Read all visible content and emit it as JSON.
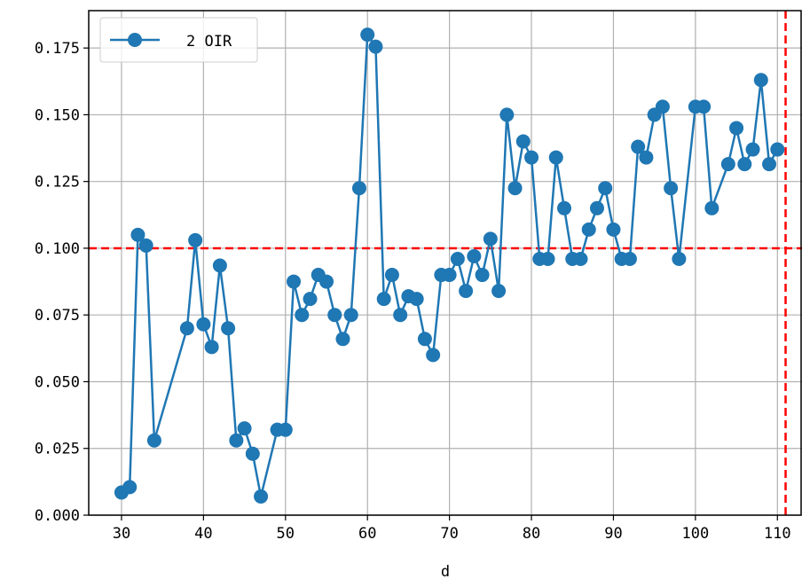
{
  "chart_data": {
    "type": "line",
    "title": "",
    "xlabel": "d",
    "ylabel": "",
    "xlim": [
      26,
      113
    ],
    "ylim": [
      0,
      0.189
    ],
    "xticks": [
      30,
      40,
      50,
      60,
      70,
      80,
      90,
      100,
      110
    ],
    "yticks": [
      0.0,
      0.025,
      0.05,
      0.075,
      0.1,
      0.125,
      0.15,
      0.175
    ],
    "xtick_labels": [
      "30",
      "40",
      "50",
      "60",
      "70",
      "80",
      "90",
      "100",
      "110"
    ],
    "ytick_labels": [
      "0.000",
      "0.025",
      "0.050",
      "0.075",
      "0.100",
      "0.125",
      "0.150",
      "0.175"
    ],
    "grid": true,
    "legend_position": "top-left",
    "series": [
      {
        "name": "2 OIR",
        "color": "#1f77b4",
        "marker": "circle",
        "x": [
          30,
          31,
          32,
          33,
          34,
          38,
          39,
          40,
          41,
          42,
          43,
          44,
          45,
          46,
          47,
          49,
          50,
          51,
          52,
          53,
          54,
          55,
          56,
          57,
          58,
          59,
          60,
          61,
          62,
          63,
          64,
          65,
          66,
          67,
          68,
          69,
          70,
          71,
          72,
          73,
          74,
          75,
          76,
          77,
          78,
          79,
          80,
          81,
          82,
          83,
          84,
          85,
          86,
          87,
          88,
          89,
          90,
          91,
          92,
          93,
          94,
          95,
          96,
          97,
          98,
          100,
          101,
          102,
          104,
          105,
          106,
          107,
          108,
          109,
          110
        ],
        "y": [
          0.0085,
          0.0105,
          0.105,
          0.101,
          0.028,
          0.07,
          0.103,
          0.0715,
          0.063,
          0.0935,
          0.07,
          0.028,
          0.0325,
          0.023,
          0.007,
          0.032,
          0.032,
          0.0875,
          0.075,
          0.081,
          0.09,
          0.0875,
          0.075,
          0.066,
          0.075,
          0.1225,
          0.18,
          0.1755,
          0.081,
          0.09,
          0.075,
          0.082,
          0.081,
          0.066,
          0.06,
          0.09,
          0.09,
          0.096,
          0.084,
          0.097,
          0.09,
          0.1035,
          0.084,
          0.15,
          0.1225,
          0.14,
          0.134,
          0.096,
          0.096,
          0.134,
          0.115,
          0.096,
          0.096,
          0.107,
          0.115,
          0.1225,
          0.107,
          0.096,
          0.096,
          0.138,
          0.134,
          0.15,
          0.153,
          0.1225,
          0.096,
          0.153,
          0.153,
          0.115,
          0.1315,
          0.145,
          0.1315,
          0.137,
          0.163,
          0.1315,
          0.137
        ]
      }
    ],
    "reference_lines": [
      {
        "orientation": "horizontal",
        "value": 0.1,
        "color": "#ff0000",
        "style": "dashed"
      },
      {
        "orientation": "vertical",
        "value": 111,
        "color": "#ff0000",
        "style": "dashed"
      }
    ]
  }
}
